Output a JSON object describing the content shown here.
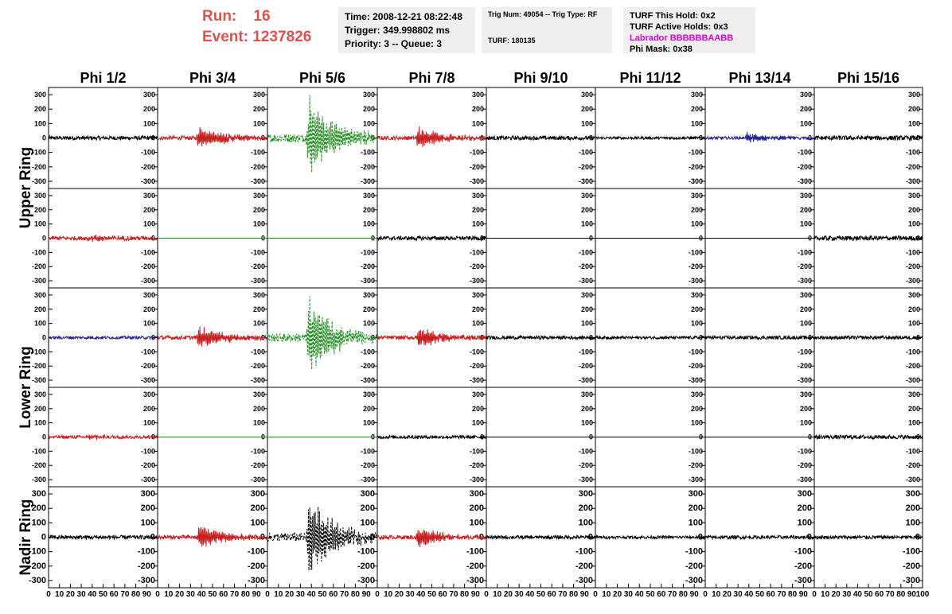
{
  "run": {
    "run_label": "Run:",
    "run_value": "16",
    "event_label": "Event:",
    "event_value": "1237826"
  },
  "info_box1": {
    "time": "Time: 2008-12-21 08:22:48",
    "trigger": "Trigger: 349.998802 ms",
    "priority": "Priority: 3 -- Queue: 3"
  },
  "info_box2": {
    "trig": "Trig Num: 49054 -- Trig Type: RF",
    "turf": "TURF: 180135"
  },
  "info_box3": {
    "hold": "TURF This Hold: 0x2",
    "active": "TURF Active Holds: 0x3",
    "labrador": "Labrador BBBBBBAABB",
    "phimask": "Phi Mask: 0x38"
  },
  "colors": {
    "red": "#c81e1e",
    "green": "#1f8c1f",
    "blue": "#1f1f8c",
    "black": "#000000",
    "info_bg": "#efefef",
    "run_text": "#d9534f",
    "labrador": "#e000e0"
  },
  "chart_data": {
    "type": "line",
    "columns": [
      "Phi 1/2",
      "Phi 3/4",
      "Phi 5/6",
      "Phi 7/8",
      "Phi 9/10",
      "Phi 11/12",
      "Phi 13/14",
      "Phi 15/16"
    ],
    "rings": [
      "Upper Ring",
      "Lower Ring",
      "Nadir Ring"
    ],
    "ylim": [
      -350,
      350
    ],
    "yticks": [
      "300",
      "200",
      "100",
      "0",
      "-100",
      "-200",
      "-300"
    ],
    "xlim": [
      0,
      100
    ],
    "xtick_labels": [
      "10",
      "20",
      "30",
      "40",
      "50",
      "60",
      "70",
      "80",
      "90"
    ],
    "x_first_label": "0",
    "x_last_label": "100",
    "panels": [
      [
        {
          "color": "black",
          "style": "solid",
          "amp": 14,
          "burst": 0,
          "flat": false
        },
        {
          "color": "red",
          "style": "solid",
          "amp": 14,
          "burst": 90,
          "flat": false
        },
        {
          "color": "green",
          "style": "dashed",
          "amp": 30,
          "burst": 300,
          "flat": false
        },
        {
          "color": "red",
          "style": "solid",
          "amp": 14,
          "burst": 80,
          "flat": false
        },
        {
          "color": "black",
          "style": "solid",
          "amp": 14,
          "burst": 0,
          "flat": false
        },
        {
          "color": "black",
          "style": "solid",
          "amp": 10,
          "burst": 0,
          "flat": false
        },
        {
          "color": "blue",
          "style": "solid",
          "amp": 10,
          "burst": 35,
          "flat": false
        },
        {
          "color": "black",
          "style": "solid",
          "amp": 16,
          "burst": 0,
          "flat": false
        }
      ],
      [
        {
          "color": "red",
          "style": "solid",
          "amp": 14,
          "burst": 20,
          "flat": false
        },
        {
          "color": "green",
          "style": "solid",
          "amp": 0,
          "burst": 0,
          "flat": true
        },
        {
          "color": "green",
          "style": "solid",
          "amp": 0,
          "burst": 0,
          "flat": true
        },
        {
          "color": "black",
          "style": "solid",
          "amp": 14,
          "burst": 0,
          "flat": false
        },
        {
          "color": "black",
          "style": "solid",
          "amp": 0,
          "burst": 0,
          "flat": true
        },
        {
          "color": "black",
          "style": "solid",
          "amp": 0,
          "burst": 0,
          "flat": true
        },
        {
          "color": "black",
          "style": "solid",
          "amp": 0,
          "burst": 0,
          "flat": true
        },
        {
          "color": "black",
          "style": "solid",
          "amp": 16,
          "burst": 0,
          "flat": false
        }
      ],
      [
        {
          "color": "blue",
          "style": "solid",
          "amp": 10,
          "burst": 0,
          "flat": false
        },
        {
          "color": "red",
          "style": "solid",
          "amp": 14,
          "burst": 90,
          "flat": false
        },
        {
          "color": "green",
          "style": "dashed",
          "amp": 30,
          "burst": 300,
          "flat": false
        },
        {
          "color": "red",
          "style": "solid",
          "amp": 14,
          "burst": 80,
          "flat": false
        },
        {
          "color": "black",
          "style": "solid",
          "amp": 12,
          "burst": 0,
          "flat": false
        },
        {
          "color": "black",
          "style": "solid",
          "amp": 10,
          "burst": 0,
          "flat": false
        },
        {
          "color": "black",
          "style": "solid",
          "amp": 12,
          "burst": 0,
          "flat": false
        },
        {
          "color": "black",
          "style": "solid",
          "amp": 12,
          "burst": 0,
          "flat": false
        }
      ],
      [
        {
          "color": "red",
          "style": "solid",
          "amp": 12,
          "burst": 15,
          "flat": false
        },
        {
          "color": "green",
          "style": "solid",
          "amp": 0,
          "burst": 0,
          "flat": true
        },
        {
          "color": "green",
          "style": "solid",
          "amp": 0,
          "burst": 0,
          "flat": true
        },
        {
          "color": "black",
          "style": "solid",
          "amp": 12,
          "burst": 0,
          "flat": false
        },
        {
          "color": "black",
          "style": "solid",
          "amp": 0,
          "burst": 0,
          "flat": true
        },
        {
          "color": "black",
          "style": "solid",
          "amp": 0,
          "burst": 0,
          "flat": true
        },
        {
          "color": "black",
          "style": "solid",
          "amp": 0,
          "burst": 0,
          "flat": true
        },
        {
          "color": "black",
          "style": "solid",
          "amp": 14,
          "burst": 0,
          "flat": false
        }
      ],
      [
        {
          "color": "black",
          "style": "solid",
          "amp": 14,
          "burst": 0,
          "flat": false
        },
        {
          "color": "red",
          "style": "solid",
          "amp": 14,
          "burst": 90,
          "flat": false
        },
        {
          "color": "black",
          "style": "dashed",
          "amp": 30,
          "burst": 300,
          "flat": false
        },
        {
          "color": "red",
          "style": "solid",
          "amp": 14,
          "burst": 80,
          "flat": false
        },
        {
          "color": "black",
          "style": "solid",
          "amp": 12,
          "burst": 0,
          "flat": false
        },
        {
          "color": "black",
          "style": "solid",
          "amp": 10,
          "burst": 0,
          "flat": false
        },
        {
          "color": "black",
          "style": "solid",
          "amp": 12,
          "burst": 0,
          "flat": false
        },
        {
          "color": "black",
          "style": "solid",
          "amp": 12,
          "burst": 0,
          "flat": false
        }
      ]
    ]
  }
}
